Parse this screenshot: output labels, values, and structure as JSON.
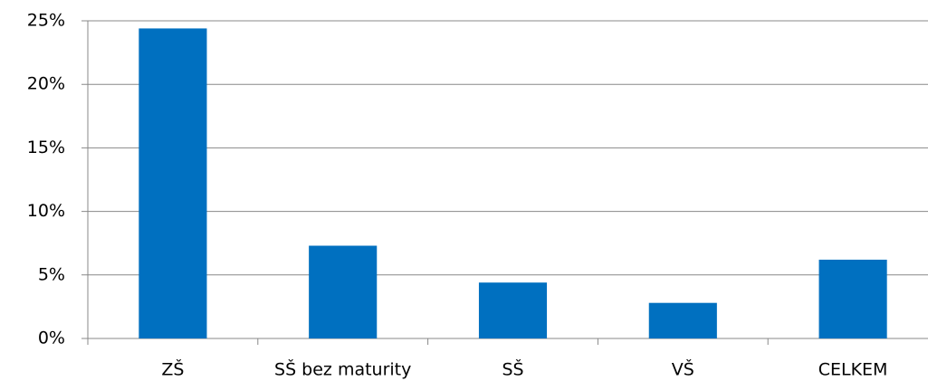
{
  "chart_data": {
    "type": "bar",
    "categories": [
      "ZŠ",
      "SŠ bez maturity",
      "SŠ",
      "VŠ",
      "CELKEM"
    ],
    "values": [
      24.4,
      7.3,
      4.4,
      2.8,
      6.2
    ],
    "color": "#0070c0",
    "ylim": [
      0,
      25
    ],
    "yticks": [
      {
        "value": 0,
        "label": "0%"
      },
      {
        "value": 5,
        "label": "5%"
      },
      {
        "value": 10,
        "label": "10%"
      },
      {
        "value": 15,
        "label": "15%"
      },
      {
        "value": 20,
        "label": "20%"
      },
      {
        "value": 25,
        "label": "25%"
      }
    ],
    "grid": true
  }
}
